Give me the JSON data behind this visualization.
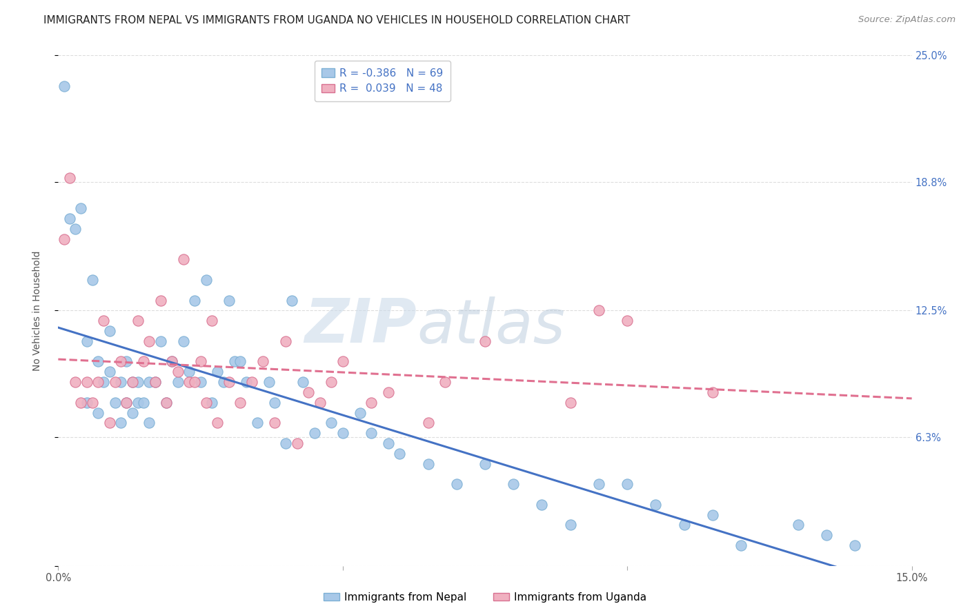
{
  "title": "IMMIGRANTS FROM NEPAL VS IMMIGRANTS FROM UGANDA NO VEHICLES IN HOUSEHOLD CORRELATION CHART",
  "source": "Source: ZipAtlas.com",
  "ylabel": "No Vehicles in Household",
  "series": [
    {
      "name": "Immigrants from Nepal",
      "color": "#a8c8e8",
      "edge_color": "#7bafd4",
      "R": -0.386,
      "N": 69,
      "line_color": "#4472c4",
      "line_style": "solid",
      "points_x": [
        0.001,
        0.002,
        0.003,
        0.004,
        0.005,
        0.005,
        0.006,
        0.007,
        0.007,
        0.008,
        0.009,
        0.009,
        0.01,
        0.011,
        0.011,
        0.012,
        0.012,
        0.013,
        0.013,
        0.014,
        0.014,
        0.015,
        0.016,
        0.016,
        0.017,
        0.018,
        0.019,
        0.02,
        0.021,
        0.022,
        0.023,
        0.024,
        0.025,
        0.026,
        0.027,
        0.028,
        0.029,
        0.03,
        0.031,
        0.032,
        0.033,
        0.035,
        0.037,
        0.038,
        0.04,
        0.041,
        0.043,
        0.045,
        0.048,
        0.05,
        0.053,
        0.055,
        0.058,
        0.06,
        0.065,
        0.07,
        0.075,
        0.08,
        0.085,
        0.09,
        0.095,
        0.1,
        0.105,
        0.11,
        0.115,
        0.12,
        0.13,
        0.135,
        0.14
      ],
      "points_y": [
        0.235,
        0.17,
        0.165,
        0.175,
        0.08,
        0.11,
        0.14,
        0.075,
        0.1,
        0.09,
        0.115,
        0.095,
        0.08,
        0.07,
        0.09,
        0.08,
        0.1,
        0.09,
        0.075,
        0.09,
        0.08,
        0.08,
        0.07,
        0.09,
        0.09,
        0.11,
        0.08,
        0.1,
        0.09,
        0.11,
        0.095,
        0.13,
        0.09,
        0.14,
        0.08,
        0.095,
        0.09,
        0.13,
        0.1,
        0.1,
        0.09,
        0.07,
        0.09,
        0.08,
        0.06,
        0.13,
        0.09,
        0.065,
        0.07,
        0.065,
        0.075,
        0.065,
        0.06,
        0.055,
        0.05,
        0.04,
        0.05,
        0.04,
        0.03,
        0.02,
        0.04,
        0.04,
        0.03,
        0.02,
        0.025,
        0.01,
        0.02,
        0.015,
        0.01
      ]
    },
    {
      "name": "Immigrants from Uganda",
      "color": "#f0b0c0",
      "edge_color": "#d87090",
      "R": 0.039,
      "N": 48,
      "line_color": "#e07090",
      "line_style": "dashed",
      "points_x": [
        0.001,
        0.002,
        0.003,
        0.004,
        0.005,
        0.006,
        0.007,
        0.008,
        0.009,
        0.01,
        0.011,
        0.012,
        0.013,
        0.014,
        0.015,
        0.016,
        0.017,
        0.018,
        0.019,
        0.02,
        0.021,
        0.022,
        0.023,
        0.024,
        0.025,
        0.026,
        0.027,
        0.028,
        0.03,
        0.032,
        0.034,
        0.036,
        0.038,
        0.04,
        0.042,
        0.044,
        0.046,
        0.048,
        0.05,
        0.055,
        0.058,
        0.065,
        0.068,
        0.075,
        0.09,
        0.095,
        0.1,
        0.115
      ],
      "points_y": [
        0.16,
        0.19,
        0.09,
        0.08,
        0.09,
        0.08,
        0.09,
        0.12,
        0.07,
        0.09,
        0.1,
        0.08,
        0.09,
        0.12,
        0.1,
        0.11,
        0.09,
        0.13,
        0.08,
        0.1,
        0.095,
        0.15,
        0.09,
        0.09,
        0.1,
        0.08,
        0.12,
        0.07,
        0.09,
        0.08,
        0.09,
        0.1,
        0.07,
        0.11,
        0.06,
        0.085,
        0.08,
        0.09,
        0.1,
        0.08,
        0.085,
        0.07,
        0.09,
        0.11,
        0.08,
        0.125,
        0.12,
        0.085
      ]
    }
  ],
  "xlim": [
    0.0,
    0.15
  ],
  "ylim": [
    0.0,
    0.25
  ],
  "xticks": [
    0.0,
    0.05,
    0.1,
    0.15
  ],
  "xtick_labels": [
    "0.0%",
    "",
    "",
    "15.0%"
  ],
  "ytick_positions": [
    0.0,
    0.063,
    0.125,
    0.188,
    0.25
  ],
  "ytick_labels_right": [
    "",
    "6.3%",
    "12.5%",
    "18.8%",
    "25.0%"
  ],
  "background_color": "#ffffff",
  "grid_color": "#dddddd",
  "title_fontsize": 11,
  "legend_fontsize": 11,
  "tick_fontsize": 10.5,
  "source_fontsize": 9.5
}
